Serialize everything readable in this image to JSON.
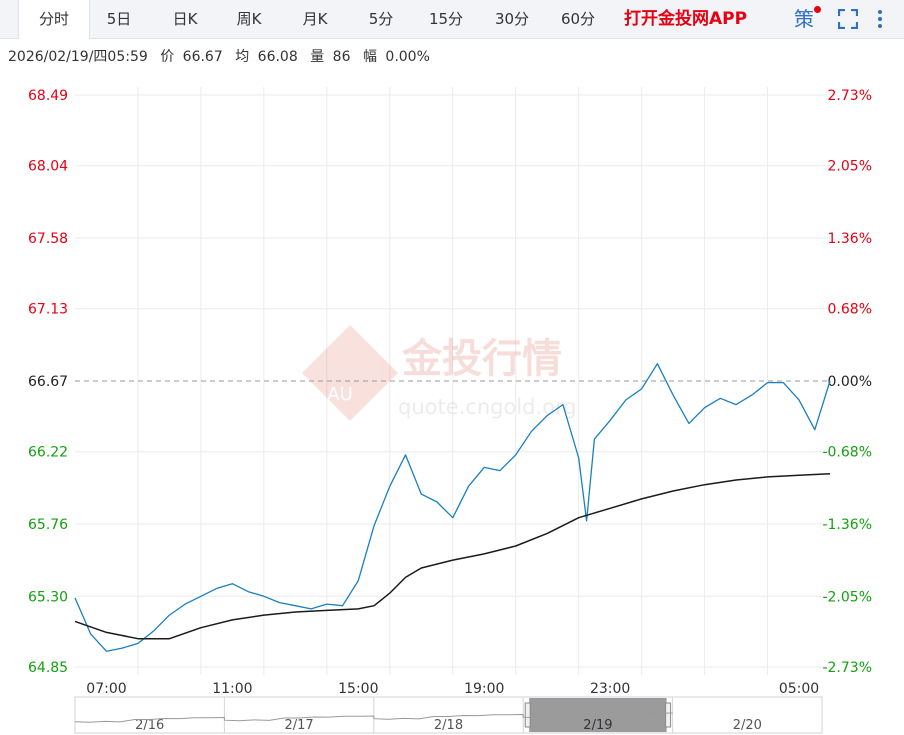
{
  "tabs": [
    "分时",
    "5日",
    "日K",
    "周K",
    "月K",
    "5分",
    "15分",
    "30分",
    "60分"
  ],
  "active_tab": "分时",
  "app_link": "打开金投网APP",
  "strategy_label": "策",
  "info": {
    "datetime": "2026/02/19/四05:59",
    "price_label": "价",
    "price": "66.67",
    "avg_label": "均",
    "avg": "66.08",
    "vol_label": "量",
    "vol": "86",
    "range_label": "幅",
    "range": "0.00%"
  },
  "watermark": {
    "text": "金投行情",
    "url": "quote.cngold.org",
    "logo": "AU"
  },
  "colors": {
    "up": "#e60012",
    "down": "#13a10e",
    "price_line": "#1a7fc1",
    "avg_line": "#1b1b1b",
    "grid": "#ebebeb",
    "ref_line": "#9a9a9a"
  },
  "chart_data": {
    "type": "line",
    "reference_price": 66.67,
    "y_ticks": [
      "68.49",
      "68.04",
      "67.58",
      "67.13",
      "66.67",
      "66.22",
      "65.76",
      "65.30",
      "64.85"
    ],
    "y_pct_ticks": [
      "2.73%",
      "2.05%",
      "1.36%",
      "0.68%",
      "0.00%",
      "-0.68%",
      "-1.36%",
      "-2.05%",
      "-2.73%"
    ],
    "ylim": [
      64.85,
      68.49
    ],
    "x_ticks": [
      "07:00",
      "11:00",
      "15:00",
      "19:00",
      "23:00",
      "05:00"
    ],
    "x_range": [
      "06:00",
      "05:59"
    ],
    "series": [
      {
        "name": "价",
        "x": [
          "06:00",
          "06:30",
          "07:00",
          "07:30",
          "08:00",
          "08:30",
          "09:00",
          "09:30",
          "10:00",
          "10:30",
          "11:00",
          "11:30",
          "12:00",
          "12:30",
          "13:00",
          "13:30",
          "14:00",
          "14:30",
          "15:00",
          "15:30",
          "16:00",
          "16:30",
          "17:00",
          "17:30",
          "18:00",
          "18:30",
          "19:00",
          "19:30",
          "20:00",
          "20:30",
          "21:00",
          "21:30",
          "22:00",
          "22:15",
          "22:30",
          "23:00",
          "23:30",
          "00:00",
          "00:30",
          "01:00",
          "01:30",
          "02:00",
          "02:30",
          "03:00",
          "03:30",
          "04:00",
          "04:30",
          "05:00",
          "05:30",
          "05:59"
        ],
        "values": [
          65.29,
          65.06,
          64.95,
          64.97,
          65.0,
          65.08,
          65.18,
          65.25,
          65.3,
          65.35,
          65.38,
          65.33,
          65.3,
          65.26,
          65.24,
          65.22,
          65.25,
          65.24,
          65.4,
          65.75,
          66.0,
          66.2,
          65.95,
          65.9,
          65.8,
          66.0,
          66.12,
          66.1,
          66.2,
          66.35,
          66.45,
          66.52,
          66.18,
          65.78,
          66.3,
          66.42,
          66.55,
          66.62,
          66.78,
          66.58,
          66.4,
          66.5,
          66.56,
          66.52,
          66.58,
          66.66,
          66.66,
          66.55,
          66.36,
          66.67
        ]
      },
      {
        "name": "均",
        "x": [
          "06:00",
          "07:00",
          "08:00",
          "09:00",
          "10:00",
          "11:00",
          "12:00",
          "13:00",
          "14:00",
          "15:00",
          "15:30",
          "16:00",
          "16:30",
          "17:00",
          "18:00",
          "19:00",
          "20:00",
          "21:00",
          "22:00",
          "23:00",
          "00:00",
          "01:00",
          "02:00",
          "03:00",
          "04:00",
          "05:00",
          "05:59"
        ],
        "values": [
          65.14,
          65.07,
          65.03,
          65.03,
          65.1,
          65.15,
          65.18,
          65.2,
          65.21,
          65.22,
          65.24,
          65.32,
          65.42,
          65.48,
          65.53,
          65.57,
          65.62,
          65.7,
          65.8,
          65.86,
          65.92,
          65.97,
          66.01,
          66.04,
          66.06,
          66.07,
          66.08
        ]
      }
    ],
    "navigator": {
      "dates": [
        "2/16",
        "2/17",
        "2/18",
        "2/19",
        "2/20"
      ],
      "selected": "2/19"
    }
  }
}
